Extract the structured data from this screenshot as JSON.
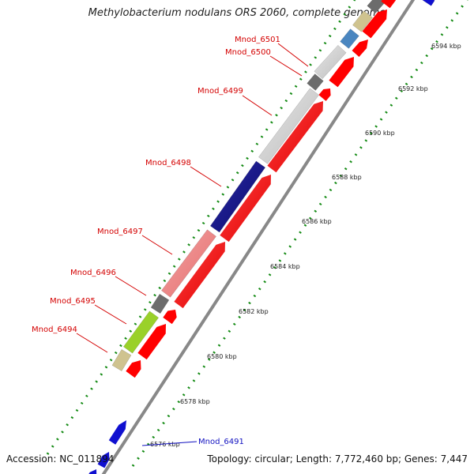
{
  "title": "Methylobacterium nodulans ORS 2060, complete genome",
  "footer": {
    "accession": "Accession: NC_011894",
    "summary": "Topology: circular; Length: 7,772,460 bp; Genes: 7,447"
  },
  "scale_labels": [
    "6576 kbp",
    "6578 kbp",
    "6580 kbp",
    "6582 kbp",
    "6584 kbp",
    "6586 kbp",
    "6588 kbp",
    "6590 kbp",
    "6592 kbp",
    "6594 kbp"
  ],
  "gene_labels": [
    {
      "text": "Mnod_6501",
      "color": "red"
    },
    {
      "text": "Mnod_6500",
      "color": "red"
    },
    {
      "text": "Mnod_6499",
      "color": "red"
    },
    {
      "text": "Mnod_6498",
      "color": "red"
    },
    {
      "text": "Mnod_6497",
      "color": "red"
    },
    {
      "text": "Mnod_6496",
      "color": "red"
    },
    {
      "text": "Mnod_6495",
      "color": "red"
    },
    {
      "text": "Mnod_6494",
      "color": "red"
    },
    {
      "text": "Mnod_6491",
      "color": "blue"
    }
  ],
  "colors": {
    "cds": "#ff0000",
    "backbone": "#888888",
    "gc_dots": "#138a13",
    "label_red": "#d40000",
    "label_blue": "#1010c0",
    "navy": "#0c0c78",
    "pink": "#f07f7f",
    "lightgray": "#cfcfcf",
    "darkgray": "#6c6c6c",
    "lime": "#8fdc1c",
    "khaki": "#cfc38f",
    "steelblue": "#4a86c0"
  }
}
